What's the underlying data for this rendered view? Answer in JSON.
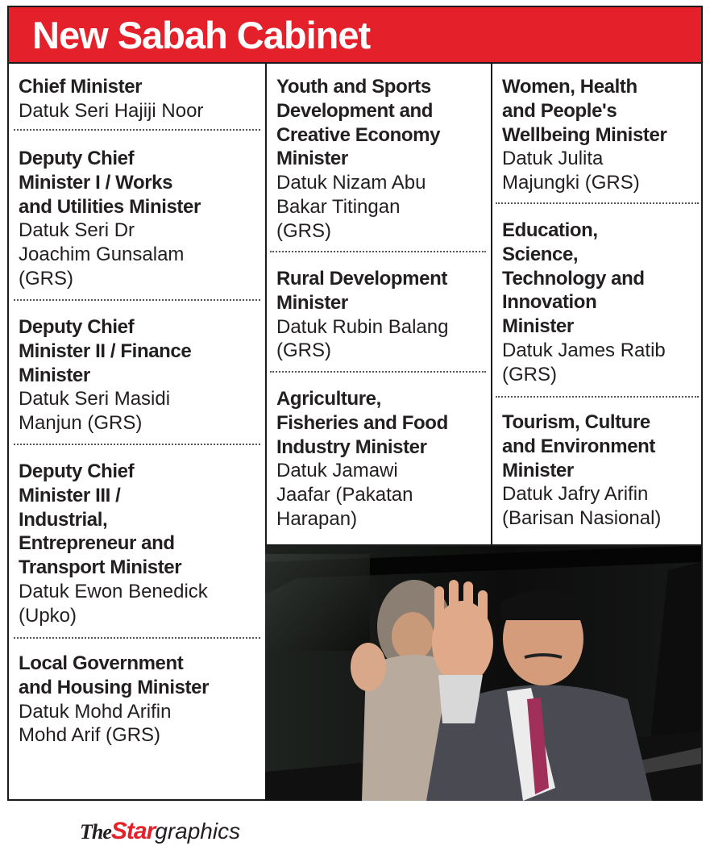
{
  "title": "New Sabah Cabinet",
  "column1": [
    {
      "role": "Chief Minister",
      "name": "Datuk Seri Hajiji Noor"
    },
    {
      "role": "Deputy Chief\nMinister I / Works\nand Utilities Minister",
      "name": "Datuk Seri Dr\nJoachim Gunsalam\n(GRS)"
    },
    {
      "role": "Deputy Chief\nMinister II / Finance\nMinister",
      "name": "Datuk Seri Masidi\nManjun (GRS)"
    },
    {
      "role": "Deputy Chief\nMinister III /\nIndustrial,\nEntrepreneur and\nTransport Minister",
      "name": "Datuk Ewon Benedick\n(Upko)"
    },
    {
      "role": "Local Government\nand Housing Minister",
      "name": "Datuk Mohd Arifin\nMohd Arif (GRS)"
    }
  ],
  "column2": [
    {
      "role": "Youth and Sports\nDevelopment and\nCreative Economy\nMinister",
      "name": "Datuk Nizam Abu\nBakar Titingan\n(GRS)"
    },
    {
      "role": "Rural Development\nMinister",
      "name": "Datuk Rubin Balang\n(GRS)"
    },
    {
      "role": "Agriculture,\nFisheries and Food\nIndustry Minister",
      "name": "Datuk Jamawi\nJaafar (Pakatan\nHarapan)"
    }
  ],
  "column3": [
    {
      "role": "Women, Health\nand People's\nWellbeing Minister",
      "name": "Datuk Julita\nMajungki (GRS)"
    },
    {
      "role": "Education,\nScience,\nTechnology and\nInnovation\nMinister",
      "name": "Datuk James Ratib\n(GRS)"
    },
    {
      "role": "Tourism, Culture\nand Environment\nMinister",
      "name": "Datuk Jafry Arifin\n(Barisan Nasional)"
    }
  ],
  "logo": {
    "the": "The",
    "star": "Star",
    "graphics": "graphics"
  },
  "colors": {
    "accent": "#e4202a",
    "text": "#231f20",
    "rule": "#1a1a1a"
  }
}
